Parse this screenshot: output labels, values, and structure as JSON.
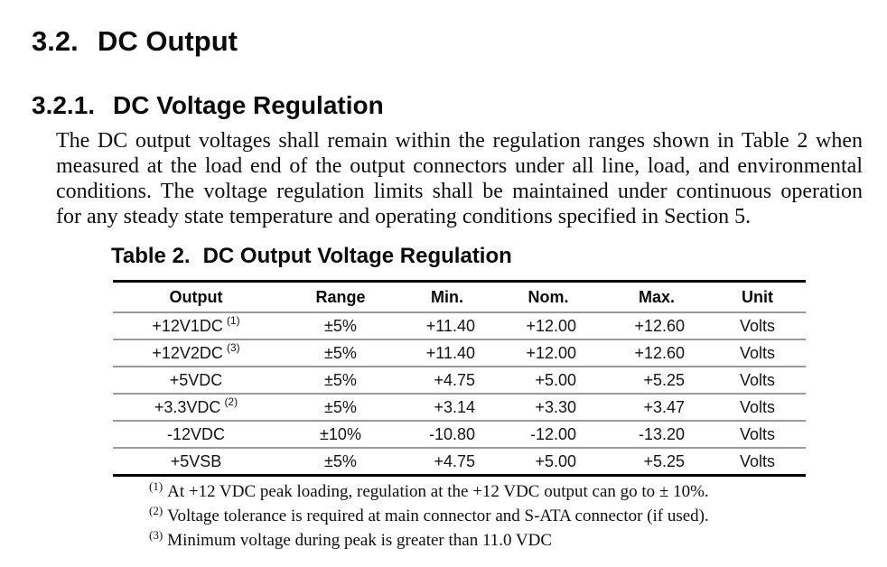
{
  "section": {
    "number": "3.2.",
    "title": "DC Output"
  },
  "subsection": {
    "number": "3.2.1.",
    "title": "DC Voltage Regulation"
  },
  "paragraph_lines": [
    "The DC output voltages shall remain within the regulation ranges shown in Table 2 when",
    "measured at the load end of the output connectors under all line, load, and environmental",
    "conditions.  The voltage regulation limits shall be maintained under continuous operation",
    "for any steady state temperature and operating conditions specified in Section 5."
  ],
  "table": {
    "caption_label": "Table 2.",
    "caption_title": "DC Output Voltage Regulation",
    "columns": [
      "Output",
      "Range",
      "Min.",
      "Nom.",
      "Max.",
      "Unit"
    ],
    "rows": [
      {
        "output": "+12V1DC",
        "ref": "(1)",
        "range": "±5%",
        "min": "+11.40",
        "nom": "+12.00",
        "max": "+12.60",
        "unit": "Volts"
      },
      {
        "output": "+12V2DC",
        "ref": "(3)",
        "range": "±5%",
        "min": "+11.40",
        "nom": "+12.00",
        "max": "+12.60",
        "unit": "Volts"
      },
      {
        "output": "+5VDC",
        "ref": "",
        "range": "±5%",
        "min": "+4.75",
        "nom": "+5.00",
        "max": "+5.25",
        "unit": "Volts"
      },
      {
        "output": "+3.3VDC",
        "ref": "(2)",
        "range": "±5%",
        "min": "+3.14",
        "nom": "+3.30",
        "max": "+3.47",
        "unit": "Volts"
      },
      {
        "output": "-12VDC",
        "ref": "",
        "range": "±10%",
        "min": "-10.80",
        "nom": "-12.00",
        "max": "-13.20",
        "unit": "Volts"
      },
      {
        "output": "+5VSB",
        "ref": "",
        "range": "±5%",
        "min": "+4.75",
        "nom": "+5.00",
        "max": "+5.25",
        "unit": "Volts"
      }
    ]
  },
  "footnotes": [
    {
      "marker": "(1)",
      "text": "At +12 VDC peak loading, regulation at the +12 VDC output can go to ± 10%."
    },
    {
      "marker": "(2)",
      "text": "Voltage tolerance is required at main connector and S-ATA connector (if used)."
    },
    {
      "marker": "(3)",
      "text": "Minimum voltage during peak is greater than 11.0 VDC"
    }
  ],
  "colors": {
    "text": "#0f0f0f",
    "heavy_rule": "#000000",
    "row_rule": "#9a9a9a",
    "background": "#ffffff"
  }
}
